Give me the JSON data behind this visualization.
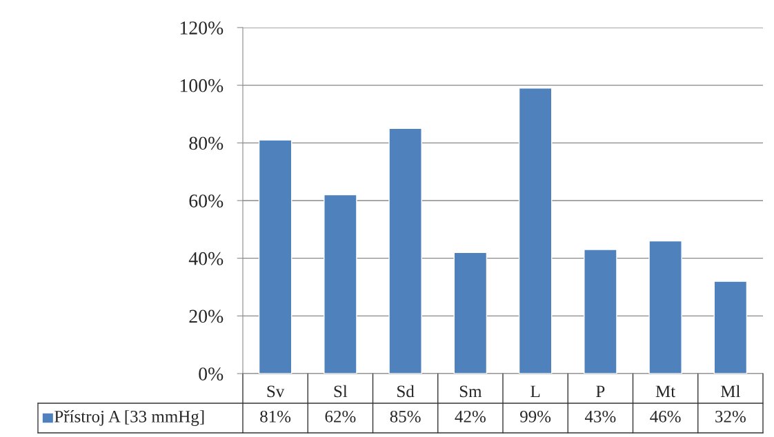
{
  "chart_data": {
    "type": "bar",
    "categories": [
      "Sv",
      "Sl",
      "Sd",
      "Sm",
      "L",
      "P",
      "Mt",
      "Ml"
    ],
    "series": [
      {
        "name": "Přístroj A [33 mmHg]",
        "color": "#4f81bd",
        "values": [
          81,
          62,
          85,
          42,
          99,
          43,
          46,
          32
        ],
        "value_labels": [
          "81%",
          "62%",
          "85%",
          "42%",
          "99%",
          "43%",
          "46%",
          "32%"
        ]
      }
    ],
    "ylim": [
      0,
      120
    ],
    "yticks": [
      {
        "value": 0,
        "label": "0%"
      },
      {
        "value": 20,
        "label": "20%"
      },
      {
        "value": 40,
        "label": "40%"
      },
      {
        "value": 60,
        "label": "60%"
      },
      {
        "value": 80,
        "label": "80%"
      },
      {
        "value": 100,
        "label": "100%"
      },
      {
        "value": 120,
        "label": "120%"
      }
    ],
    "grid": "y",
    "legend": "bottom"
  }
}
